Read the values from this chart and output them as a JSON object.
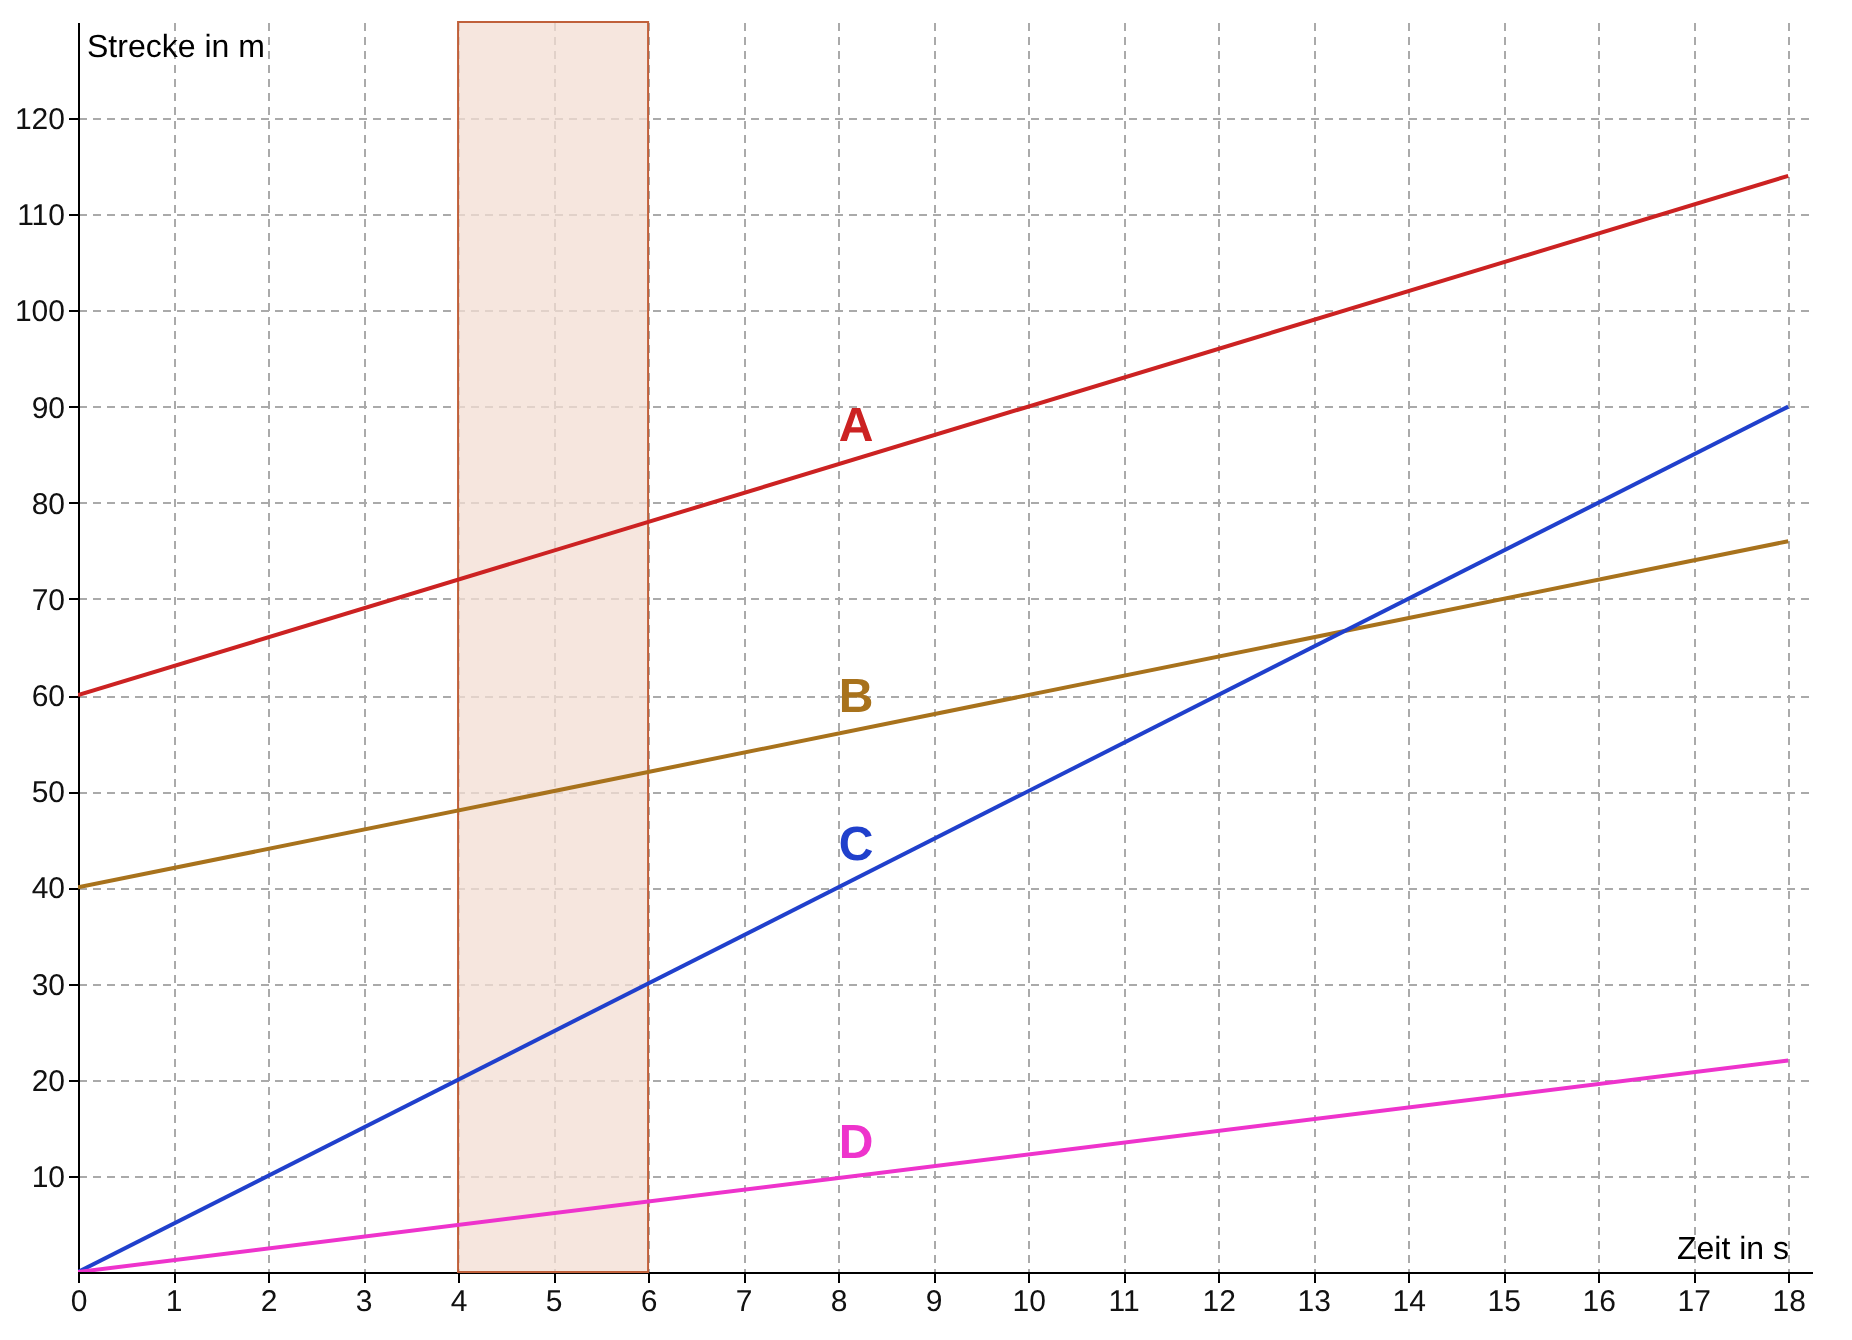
{
  "chart_data": {
    "type": "line",
    "xlabel": "Zeit in s",
    "ylabel": "Strecke in m",
    "x": [
      0,
      18
    ],
    "series": [
      {
        "name": "A",
        "color": "#cc2222",
        "values": [
          60,
          114
        ]
      },
      {
        "name": "B",
        "color": "#a8721c",
        "values": [
          40,
          76
        ]
      },
      {
        "name": "C",
        "color": "#2040cc",
        "values": [
          0,
          90
        ]
      },
      {
        "name": "D",
        "color": "#ee33cc",
        "values": [
          0,
          22
        ]
      }
    ],
    "xlim": [
      0,
      18.25
    ],
    "ylim": [
      0,
      130
    ],
    "xticks": [
      0,
      1,
      2,
      3,
      4,
      5,
      6,
      7,
      8,
      9,
      10,
      11,
      12,
      13,
      14,
      15,
      16,
      17,
      18
    ],
    "yticks": [
      10,
      20,
      30,
      40,
      50,
      60,
      70,
      80,
      90,
      100,
      110,
      120
    ],
    "bands": [
      {
        "axis": "x",
        "from": 4,
        "to": 6,
        "color": "#f3ddd3"
      }
    ],
    "grid": true,
    "legend": false
  }
}
